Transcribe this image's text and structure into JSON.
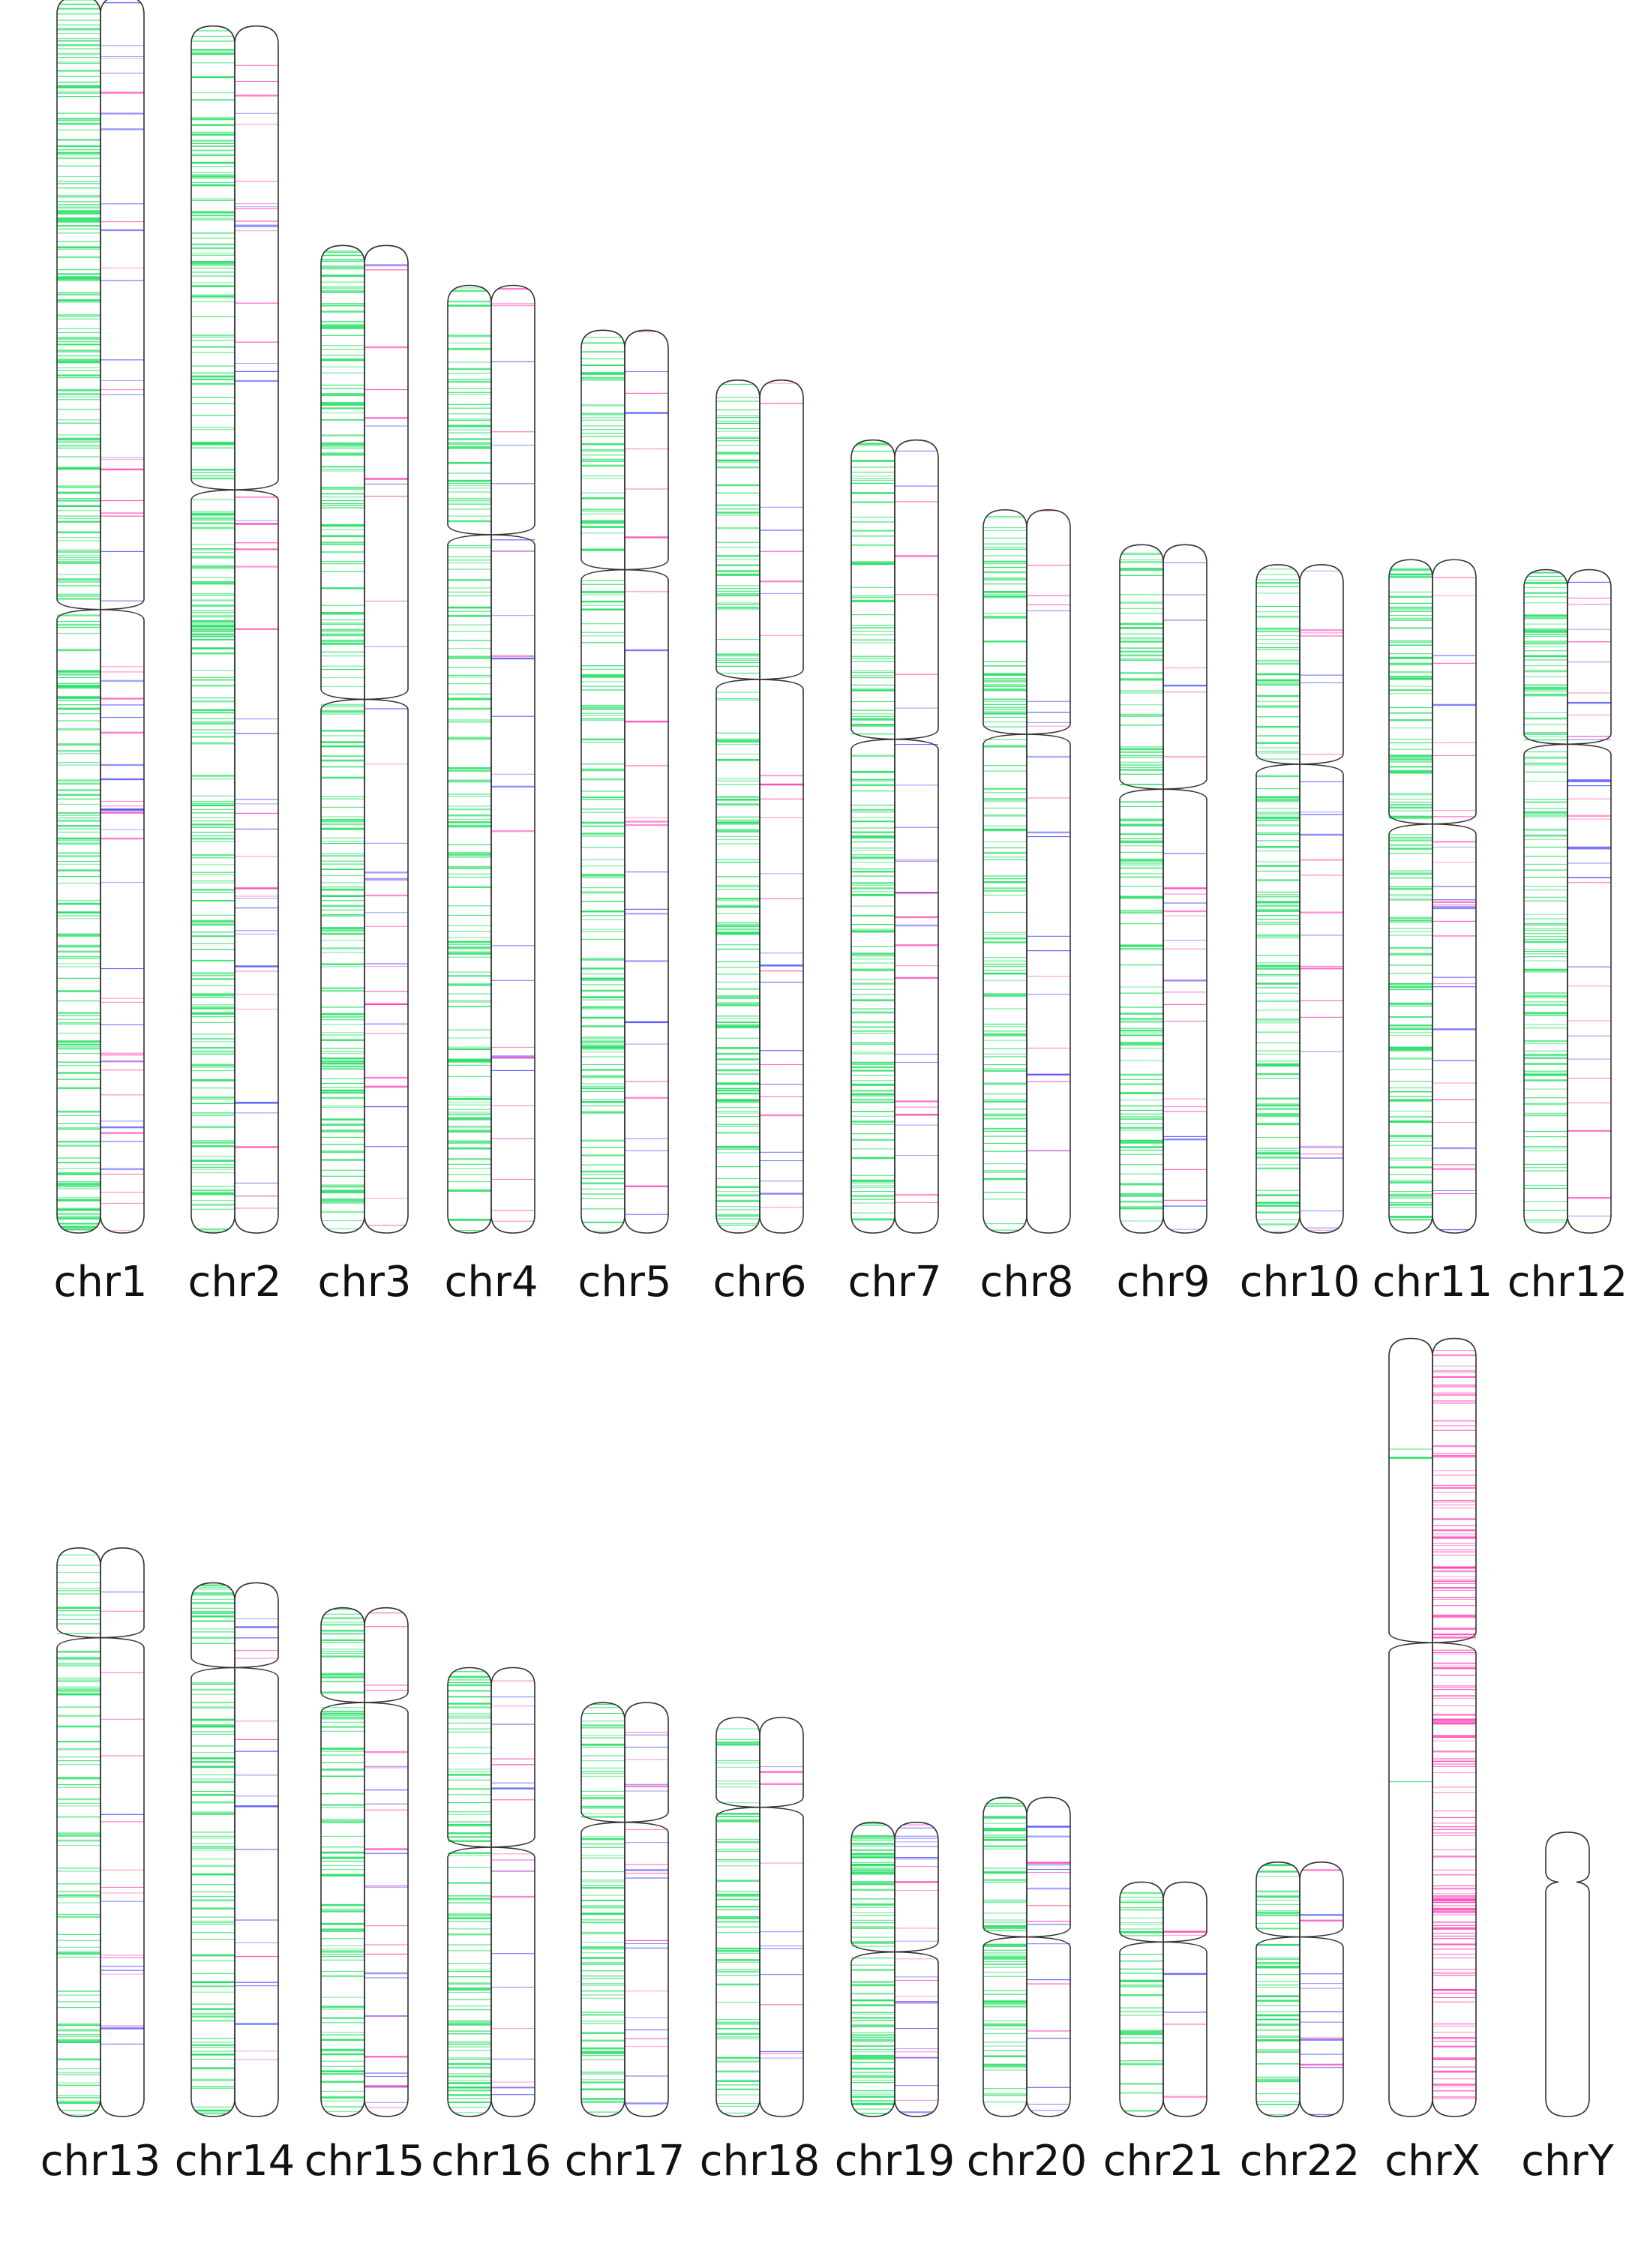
{
  "colors": {
    "left": "#2ee06a",
    "right_a": "#ff3fb4",
    "right_b": "#4a4aff",
    "outline": "#333333"
  },
  "chromosomes": [
    {
      "name": "chr1",
      "length": 248,
      "centromere": 123,
      "left_density": 0.6,
      "right_density": 0.12,
      "left_color": "green",
      "right_color": "mixed"
    },
    {
      "name": "chr2",
      "length": 242,
      "centromere": 93,
      "left_density": 0.55,
      "right_density": 0.1,
      "left_color": "green",
      "right_color": "mixed"
    },
    {
      "name": "chr3",
      "length": 198,
      "centromere": 91,
      "left_density": 0.55,
      "right_density": 0.09,
      "left_color": "green",
      "right_color": "mixed"
    },
    {
      "name": "chr4",
      "length": 190,
      "centromere": 50,
      "left_density": 0.45,
      "right_density": 0.07,
      "left_color": "green",
      "right_color": "mixed"
    },
    {
      "name": "chr5",
      "length": 181,
      "centromere": 48,
      "left_density": 0.48,
      "right_density": 0.07,
      "left_color": "green",
      "right_color": "mixed"
    },
    {
      "name": "chr6",
      "length": 171,
      "centromere": 60,
      "left_density": 0.5,
      "right_density": 0.08,
      "left_color": "green",
      "right_color": "mixed"
    },
    {
      "name": "chr7",
      "length": 159,
      "centromere": 60,
      "left_density": 0.55,
      "right_density": 0.09,
      "left_color": "green",
      "right_color": "mixed"
    },
    {
      "name": "chr8",
      "length": 145,
      "centromere": 45,
      "left_density": 0.48,
      "right_density": 0.08,
      "left_color": "green",
      "right_color": "mixed"
    },
    {
      "name": "chr9",
      "length": 138,
      "centromere": 49,
      "left_density": 0.5,
      "right_density": 0.1,
      "left_color": "green",
      "right_color": "mixed"
    },
    {
      "name": "chr10",
      "length": 134,
      "centromere": 40,
      "left_density": 0.52,
      "right_density": 0.1,
      "left_color": "green",
      "right_color": "mixed"
    },
    {
      "name": "chr11",
      "length": 135,
      "centromere": 53,
      "left_density": 0.6,
      "right_density": 0.12,
      "left_color": "green",
      "right_color": "mixed"
    },
    {
      "name": "chr12",
      "length": 133,
      "centromere": 35,
      "left_density": 0.52,
      "right_density": 0.12,
      "left_color": "green",
      "right_color": "mixed"
    },
    {
      "name": "chr13",
      "length": 114,
      "centromere": 18,
      "left_density": 0.4,
      "right_density": 0.08,
      "left_color": "green",
      "right_color": "mixed"
    },
    {
      "name": "chr14",
      "length": 107,
      "centromere": 17,
      "left_density": 0.5,
      "right_density": 0.1,
      "left_color": "green",
      "right_color": "mixed"
    },
    {
      "name": "chr15",
      "length": 102,
      "centromere": 19,
      "left_density": 0.52,
      "right_density": 0.14,
      "left_color": "green",
      "right_color": "mixed"
    },
    {
      "name": "chr16",
      "length": 90,
      "centromere": 36,
      "left_density": 0.55,
      "right_density": 0.12,
      "left_color": "green",
      "right_color": "mixed"
    },
    {
      "name": "chr17",
      "length": 83,
      "centromere": 24,
      "left_density": 0.62,
      "right_density": 0.14,
      "left_color": "green",
      "right_color": "mixed"
    },
    {
      "name": "chr18",
      "length": 80,
      "centromere": 18,
      "left_density": 0.45,
      "right_density": 0.08,
      "left_color": "green",
      "right_color": "mixed"
    },
    {
      "name": "chr19",
      "length": 59,
      "centromere": 26,
      "left_density": 0.85,
      "right_density": 0.25,
      "left_color": "green",
      "right_color": "mixed"
    },
    {
      "name": "chr20",
      "length": 64,
      "centromere": 28,
      "left_density": 0.55,
      "right_density": 0.14,
      "left_color": "green",
      "right_color": "mixed"
    },
    {
      "name": "chr21",
      "length": 47,
      "centromere": 12,
      "left_density": 0.45,
      "right_density": 0.08,
      "left_color": "green",
      "right_color": "mixed"
    },
    {
      "name": "chr22",
      "length": 51,
      "centromere": 15,
      "left_density": 0.6,
      "right_density": 0.14,
      "left_color": "green",
      "right_color": "mixed"
    },
    {
      "name": "chrX",
      "length": 156,
      "centromere": 61,
      "left_density": 0.01,
      "right_density": 0.55,
      "left_color": "green",
      "right_color": "pink"
    },
    {
      "name": "chrY",
      "length": 57,
      "centromere": 10,
      "left_density": 0.0,
      "right_density": 0.0,
      "left_color": "green",
      "right_color": "none",
      "single": true
    }
  ]
}
